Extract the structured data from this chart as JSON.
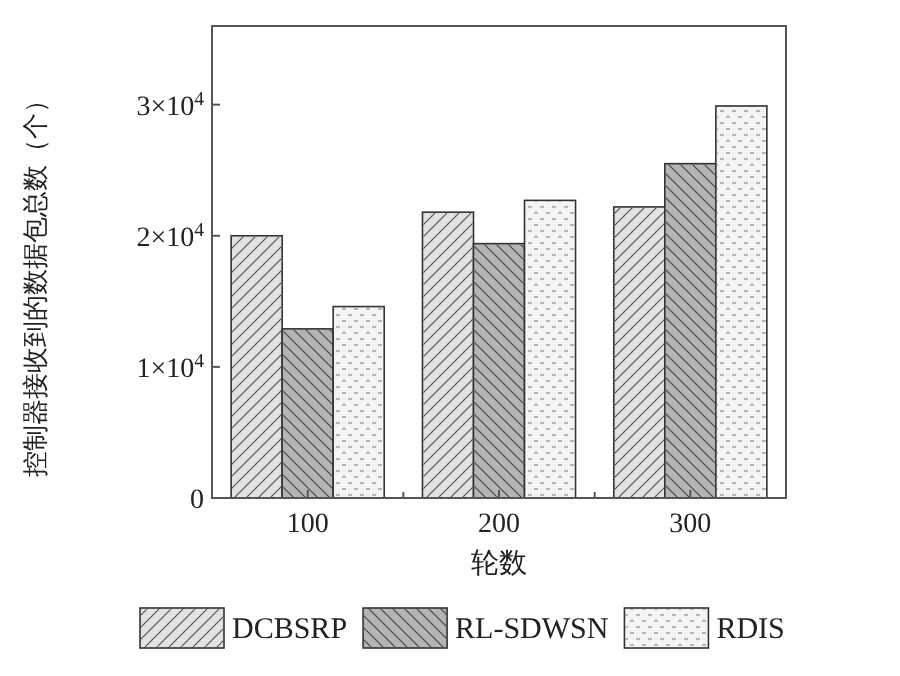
{
  "chart_data": {
    "type": "bar",
    "xlabel": "轮数",
    "ylabel": "控制器接收到的数据包总数（个）",
    "categories": [
      "100",
      "200",
      "300"
    ],
    "series": [
      {
        "name": "DCBSRP",
        "color": "#e2e2e2",
        "values": [
          20000,
          21800,
          22200
        ]
      },
      {
        "name": "RL-SDWSN",
        "color": "#b4b4b4",
        "values": [
          12900,
          19400,
          25500
        ]
      },
      {
        "name": "RDIS",
        "color": "#f4f4f4",
        "values": [
          14600,
          22700,
          29900
        ]
      }
    ],
    "ylim": [
      0,
      36000
    ],
    "yticks": [
      0,
      {
        "value": 10000,
        "label": "1×10$^{4}$"
      },
      {
        "value": 20000,
        "label": "2×10$^{4}$"
      },
      {
        "value": 30000,
        "label": "3×10$^{4}$"
      }
    ],
    "legend": "bottom"
  }
}
